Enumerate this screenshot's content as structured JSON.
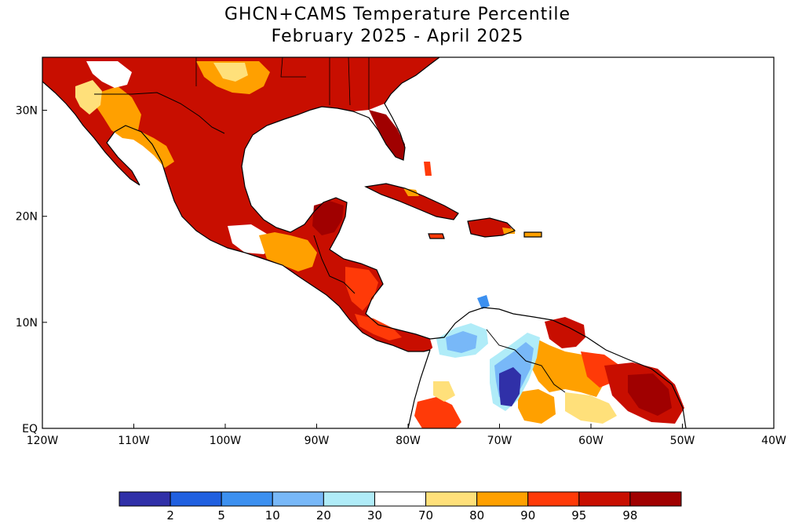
{
  "title_line1": "GHCN+CAMS Temperature Percentile",
  "title_line2": "February 2025 - April 2025",
  "map": {
    "lon_range": [
      -120,
      -40
    ],
    "lat_range": [
      0,
      35
    ],
    "x_ticks": [
      {
        "lon": -120,
        "label": "120W"
      },
      {
        "lon": -110,
        "label": "110W"
      },
      {
        "lon": -100,
        "label": "100W"
      },
      {
        "lon": -90,
        "label": "90W"
      },
      {
        "lon": -80,
        "label": "80W"
      },
      {
        "lon": -70,
        "label": "70W"
      },
      {
        "lon": -60,
        "label": "60W"
      },
      {
        "lon": -50,
        "label": "50W"
      },
      {
        "lon": -40,
        "label": "40W"
      }
    ],
    "y_ticks": [
      {
        "lat": 0,
        "label": "EQ"
      },
      {
        "lat": 10,
        "label": "10N"
      },
      {
        "lat": 20,
        "label": "20N"
      },
      {
        "lat": 30,
        "label": "30N"
      }
    ]
  },
  "legend": {
    "colors": [
      "#3030a8",
      "#2060e0",
      "#3c90f0",
      "#78b8f8",
      "#b0ecf8",
      "#ffffff",
      "#ffe07a",
      "#ffa000",
      "#ff3a08",
      "#c80e00",
      "#a00000"
    ],
    "labels": [
      "2",
      "5",
      "10",
      "20",
      "30",
      "70",
      "80",
      "90",
      "95",
      "98"
    ]
  },
  "fill_colors": {
    "p80": "#ffe07a",
    "p90": "#ffa000",
    "p95": "#ff3a08",
    "p98": "#c80e00",
    "p99": "#a00000",
    "p20": "#78b8f8",
    "p30": "#b0ecf8",
    "p10": "#3c90f0",
    "p2": "#3030a8"
  }
}
